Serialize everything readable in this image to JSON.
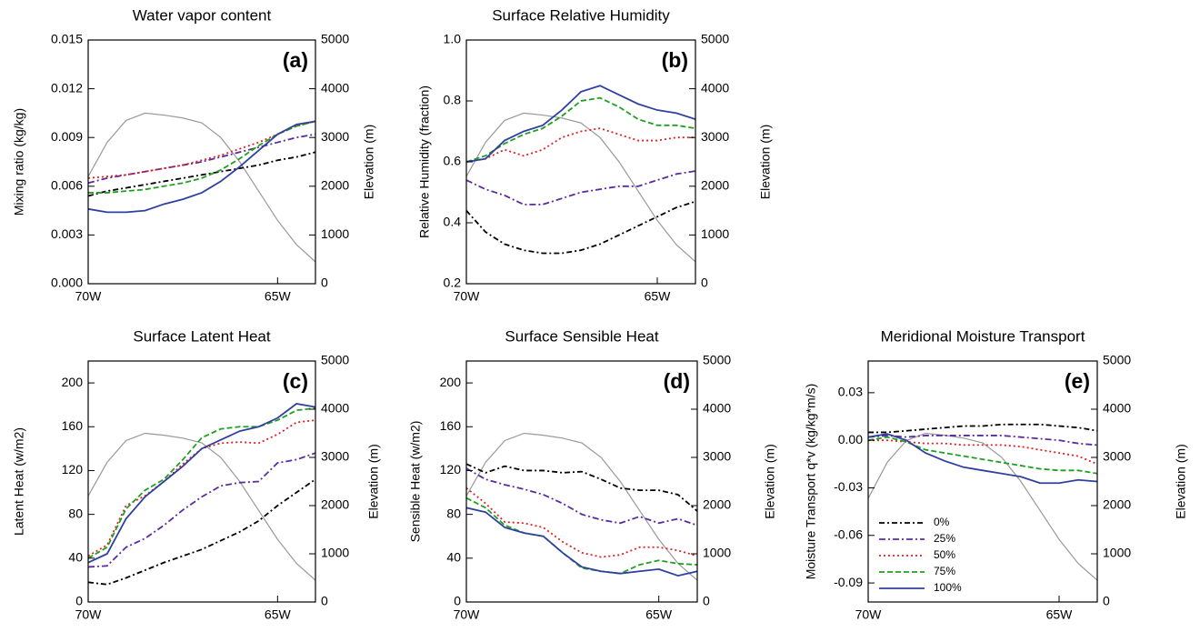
{
  "chart_data": [
    {
      "type": "line",
      "title": "Water vapor content",
      "label": "(a)",
      "ylabel": "Mixing ratio (kg/kg)",
      "y2label": "Elevation (m)",
      "x": [
        -70,
        -69.5,
        -69,
        -68.5,
        -68,
        -67.5,
        -67,
        -66.5,
        -66,
        -65.5,
        -65,
        -64.5,
        -64
      ],
      "xlim": [
        -70,
        -64
      ],
      "xticks": [
        {
          "value": -70,
          "label": "70W"
        },
        {
          "value": -65,
          "label": "65W"
        }
      ],
      "ylim": [
        0,
        0.015
      ],
      "yticks": [
        {
          "value": 0,
          "label": "0.000"
        },
        {
          "value": 0.003,
          "label": "0.003"
        },
        {
          "value": 0.006,
          "label": "0.006"
        },
        {
          "value": 0.009,
          "label": "0.009"
        },
        {
          "value": 0.012,
          "label": "0.012"
        },
        {
          "value": 0.015,
          "label": "0.015"
        }
      ],
      "y2lim": [
        0,
        5000
      ],
      "y2ticks": [
        0,
        1000,
        2000,
        3000,
        4000,
        5000
      ],
      "series": [
        {
          "color": "#000000",
          "dash": "6,3,2,3",
          "values": [
            0.0054,
            0.0057,
            0.0059,
            0.0061,
            0.0063,
            0.0065,
            0.0067,
            0.0069,
            0.0071,
            0.0073,
            0.0076,
            0.0078,
            0.0081
          ]
        },
        {
          "color": "#5a2ca0",
          "dash": "7,3,2,3",
          "values": [
            0.0062,
            0.0065,
            0.0067,
            0.0069,
            0.0071,
            0.0073,
            0.0075,
            0.0078,
            0.0081,
            0.0084,
            0.0087,
            0.009,
            0.0092
          ]
        },
        {
          "color": "#e02020",
          "dash": "2,3",
          "values": [
            0.0065,
            0.0066,
            0.0067,
            0.0069,
            0.0071,
            0.0073,
            0.0076,
            0.0079,
            0.0083,
            0.0087,
            0.0092,
            0.0097,
            0.01
          ]
        },
        {
          "color": "#20a020",
          "dash": "6,3",
          "values": [
            0.0056,
            0.0056,
            0.0057,
            0.0058,
            0.006,
            0.0062,
            0.0065,
            0.007,
            0.0077,
            0.0085,
            0.0092,
            0.0097,
            0.01
          ]
        },
        {
          "color": "#3040a0",
          "dash": "none",
          "values": [
            0.0046,
            0.0044,
            0.0044,
            0.0045,
            0.0049,
            0.0052,
            0.0056,
            0.0063,
            0.0072,
            0.0082,
            0.0092,
            0.0098,
            0.01
          ]
        },
        {
          "color": "#999999",
          "dash": "none",
          "axis": "y2",
          "values": [
            2200,
            2900,
            3350,
            3500,
            3460,
            3400,
            3300,
            3000,
            2500,
            1900,
            1300,
            800,
            450
          ]
        }
      ]
    },
    {
      "type": "line",
      "title": "Surface Relative Humidity",
      "label": "(b)",
      "ylabel": "Relative Humidity (fraction)",
      "y2label": "Elevation (m)",
      "x": [
        -70,
        -69.5,
        -69,
        -68.5,
        -68,
        -67.5,
        -67,
        -66.5,
        -66,
        -65.5,
        -65,
        -64.5,
        -64
      ],
      "xlim": [
        -70,
        -64
      ],
      "xticks": [
        {
          "value": -70,
          "label": "70W"
        },
        {
          "value": -65,
          "label": "65W"
        }
      ],
      "ylim": [
        0.2,
        1
      ],
      "yticks": [
        0.2,
        0.4,
        0.6,
        0.8,
        {
          "value": 1,
          "label": "1.0"
        }
      ],
      "y2lim": [
        0,
        5000
      ],
      "y2ticks": [
        0,
        1000,
        2000,
        3000,
        4000,
        5000
      ],
      "series": [
        {
          "color": "#000000",
          "dash": "6,3,2,3",
          "values": [
            0.44,
            0.37,
            0.33,
            0.31,
            0.3,
            0.3,
            0.31,
            0.33,
            0.36,
            0.39,
            0.42,
            0.45,
            0.47
          ]
        },
        {
          "color": "#5a2ca0",
          "dash": "7,3,2,3",
          "values": [
            0.54,
            0.51,
            0.49,
            0.46,
            0.46,
            0.48,
            0.5,
            0.51,
            0.52,
            0.52,
            0.54,
            0.56,
            0.57
          ]
        },
        {
          "color": "#e02020",
          "dash": "2,3",
          "values": [
            0.6,
            0.61,
            0.64,
            0.62,
            0.64,
            0.68,
            0.7,
            0.71,
            0.69,
            0.67,
            0.67,
            0.68,
            0.68
          ]
        },
        {
          "color": "#20a020",
          "dash": "6,3",
          "values": [
            0.6,
            0.62,
            0.66,
            0.69,
            0.71,
            0.75,
            0.8,
            0.81,
            0.78,
            0.74,
            0.72,
            0.72,
            0.71
          ]
        },
        {
          "color": "#3040a0",
          "dash": "none",
          "values": [
            0.6,
            0.61,
            0.67,
            0.7,
            0.72,
            0.77,
            0.83,
            0.85,
            0.82,
            0.79,
            0.77,
            0.76,
            0.74
          ]
        },
        {
          "color": "#999999",
          "dash": "none",
          "axis": "y2",
          "values": [
            2200,
            2900,
            3350,
            3500,
            3460,
            3400,
            3300,
            3000,
            2500,
            1900,
            1300,
            800,
            450
          ]
        }
      ]
    },
    {
      "type": "line",
      "title": "Surface Latent Heat",
      "label": "(c)",
      "ylabel": "Latent Heat (w/m2)",
      "y2label": "Elevation (m)",
      "x": [
        -70,
        -69.5,
        -69,
        -68.5,
        -68,
        -67.5,
        -67,
        -66.5,
        -66,
        -65.5,
        -65,
        -64.5,
        -64
      ],
      "xlim": [
        -70,
        -64
      ],
      "xticks": [
        {
          "value": -70,
          "label": "70W"
        },
        {
          "value": -65,
          "label": "65W"
        }
      ],
      "ylim": [
        0,
        220
      ],
      "yticks": [
        0,
        40,
        80,
        120,
        160,
        200
      ],
      "y2lim": [
        0,
        5000
      ],
      "y2ticks": [
        0,
        1000,
        2000,
        3000,
        4000,
        5000
      ],
      "series": [
        {
          "color": "#000000",
          "dash": "6,3,2,3",
          "values": [
            18,
            16,
            22,
            29,
            36,
            42,
            48,
            56,
            64,
            74,
            88,
            100,
            112
          ]
        },
        {
          "color": "#5a2ca0",
          "dash": "7,3,2,3",
          "values": [
            32,
            33,
            50,
            58,
            70,
            84,
            96,
            106,
            109,
            110,
            127,
            130,
            136
          ]
        },
        {
          "color": "#e02020",
          "dash": "2,3",
          "values": [
            42,
            52,
            88,
            97,
            110,
            126,
            140,
            145,
            146,
            145,
            153,
            164,
            166
          ]
        },
        {
          "color": "#20a020",
          "dash": "6,3",
          "values": [
            40,
            50,
            85,
            102,
            112,
            130,
            150,
            158,
            160,
            160,
            166,
            175,
            177
          ]
        },
        {
          "color": "#3040a0",
          "dash": "none",
          "values": [
            36,
            44,
            76,
            96,
            110,
            124,
            140,
            148,
            156,
            160,
            168,
            181,
            178
          ]
        },
        {
          "color": "#999999",
          "dash": "none",
          "axis": "y2",
          "values": [
            2200,
            2900,
            3350,
            3500,
            3460,
            3400,
            3300,
            3000,
            2500,
            1900,
            1300,
            800,
            450
          ]
        }
      ]
    },
    {
      "type": "line",
      "title": "Surface Sensible Heat",
      "label": "(d)",
      "ylabel": "Sensible Heat (w/m2)",
      "y2label": "Elevation (m)",
      "x": [
        -70,
        -69.5,
        -69,
        -68.5,
        -68,
        -67.5,
        -67,
        -66.5,
        -66,
        -65.5,
        -65,
        -64.5,
        -64
      ],
      "xlim": [
        -70,
        -64
      ],
      "xticks": [
        {
          "value": -70,
          "label": "70W"
        },
        {
          "value": -65,
          "label": "65W"
        }
      ],
      "ylim": [
        0,
        220
      ],
      "yticks": [
        0,
        40,
        80,
        120,
        160,
        200
      ],
      "y2lim": [
        0,
        5000
      ],
      "y2ticks": [
        0,
        1000,
        2000,
        3000,
        4000,
        5000
      ],
      "series": [
        {
          "color": "#000000",
          "dash": "6,3,2,3",
          "values": [
            126,
            118,
            124,
            120,
            120,
            118,
            119,
            112,
            104,
            102,
            102,
            98,
            83
          ]
        },
        {
          "color": "#5a2ca0",
          "dash": "7,3,2,3",
          "values": [
            122,
            112,
            107,
            103,
            98,
            90,
            80,
            75,
            72,
            78,
            72,
            76,
            70
          ]
        },
        {
          "color": "#e02020",
          "dash": "2,3",
          "values": [
            104,
            90,
            73,
            72,
            68,
            55,
            45,
            41,
            43,
            50,
            50,
            47,
            42
          ]
        },
        {
          "color": "#20a020",
          "dash": "6,3",
          "values": [
            95,
            86,
            70,
            63,
            60,
            45,
            31,
            28,
            26,
            34,
            38,
            35,
            34
          ]
        },
        {
          "color": "#3040a0",
          "dash": "none",
          "values": [
            86,
            82,
            68,
            63,
            60,
            45,
            32,
            28,
            26,
            28,
            30,
            24,
            28
          ]
        },
        {
          "color": "#999999",
          "dash": "none",
          "axis": "y2",
          "values": [
            2200,
            2900,
            3350,
            3500,
            3460,
            3400,
            3300,
            3000,
            2500,
            1900,
            1300,
            800,
            450
          ]
        }
      ]
    },
    {
      "type": "line",
      "title": "Meridional Moisture Transport",
      "label": "(e)",
      "ylabel": "Moisture Transport q*v (kg/kg*m/s)",
      "y2label": "Elevation (m)",
      "x": [
        -70,
        -69.5,
        -69,
        -68.5,
        -68,
        -67.5,
        -67,
        -66.5,
        -66,
        -65.5,
        -65,
        -64.5,
        -64
      ],
      "xlim": [
        -70,
        -64
      ],
      "xticks": [
        {
          "value": -70,
          "label": "70W"
        },
        {
          "value": -65,
          "label": "65W"
        }
      ],
      "ylim": [
        -0.102,
        0.05
      ],
      "yticks": [
        {
          "value": -0.09,
          "label": "-0.09"
        },
        {
          "value": -0.06,
          "label": "-0.06"
        },
        {
          "value": -0.03,
          "label": "-0.03"
        },
        {
          "value": 0,
          "label": "0.00"
        },
        {
          "value": 0.03,
          "label": "0.03"
        }
      ],
      "y2lim": [
        0,
        5000
      ],
      "y2ticks": [
        0,
        1000,
        2000,
        3000,
        4000,
        5000
      ],
      "legend_corner": "lower-left",
      "series": [
        {
          "name": "0%",
          "color": "#000000",
          "dash": "6,3,2,3",
          "values": [
            0.005,
            0.005,
            0.006,
            0.007,
            0.008,
            0.009,
            0.009,
            0.01,
            0.01,
            0.01,
            0.009,
            0.008,
            0.006
          ]
        },
        {
          "name": "25%",
          "color": "#5a2ca0",
          "dash": "7,3,2,3",
          "values": [
            0.002,
            0.003,
            0.002,
            0.003,
            0.003,
            0.003,
            0.003,
            0.003,
            0.002,
            0.001,
            0,
            -0.002,
            -0.003
          ]
        },
        {
          "name": "50%",
          "color": "#e02020",
          "dash": "2,3",
          "values": [
            0,
            0,
            -0.001,
            -0.002,
            -0.002,
            -0.003,
            -0.003,
            -0.003,
            -0.004,
            -0.006,
            -0.008,
            -0.01,
            -0.015
          ]
        },
        {
          "name": "75%",
          "color": "#20a020",
          "dash": "6,3",
          "values": [
            0,
            0.002,
            -0.001,
            -0.006,
            -0.008,
            -0.01,
            -0.012,
            -0.014,
            -0.016,
            -0.018,
            -0.019,
            -0.019,
            -0.021
          ]
        },
        {
          "name": "100%",
          "color": "#3040a0",
          "dash": "none",
          "values": [
            0.002,
            0.004,
            0,
            -0.008,
            -0.013,
            -0.017,
            -0.019,
            -0.021,
            -0.023,
            -0.027,
            -0.027,
            -0.025,
            -0.026
          ]
        },
        {
          "color": "#999999",
          "dash": "none",
          "axis": "y2",
          "values": [
            2150,
            2900,
            3350,
            3500,
            3460,
            3400,
            3300,
            3000,
            2500,
            1900,
            1300,
            800,
            450
          ]
        }
      ]
    }
  ]
}
